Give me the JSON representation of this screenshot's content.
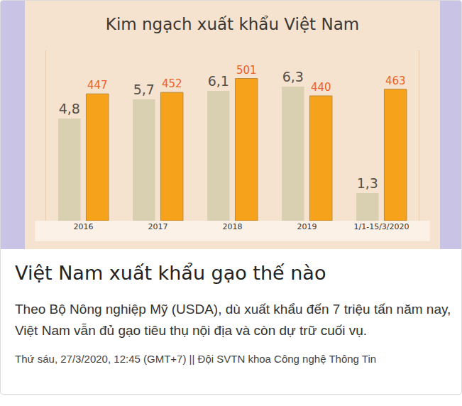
{
  "chart_data": {
    "type": "bar",
    "title": "Kim ngạch xuất khẩu Việt Nam",
    "categories": [
      "2016",
      "2017",
      "2018",
      "2019",
      "1/1-15/3/2020"
    ],
    "series": [
      {
        "color": "#d9d0b2",
        "values": [
          4.8,
          5.7,
          6.1,
          6.3,
          1.3
        ],
        "value_labels": [
          "4,8",
          "5,7",
          "6,1",
          "6,3",
          "1,3"
        ]
      },
      {
        "color": "#f7a21b",
        "values": [
          447,
          452,
          501,
          440,
          463
        ],
        "axis": "y2"
      }
    ],
    "ylim": [
      0,
      8
    ],
    "y2lim": [
      0,
      600
    ],
    "data_labels": true,
    "tick_labels": "x",
    "grid": false
  },
  "article": {
    "headline": "Việt Nam xuất khẩu gạo thế nào",
    "summary": "Theo Bộ Nông nghiệp Mỹ (USDA), dù xuất khẩu đến 7 triệu tấn năm nay, Việt Nam vẫn đủ gạo tiêu thụ nội địa và còn dự trữ cuối vụ.",
    "byline": "Thứ sáu, 27/3/2020, 12:45 (GMT+7) || Đội SVTN khoa Công nghệ Thông Tin"
  }
}
